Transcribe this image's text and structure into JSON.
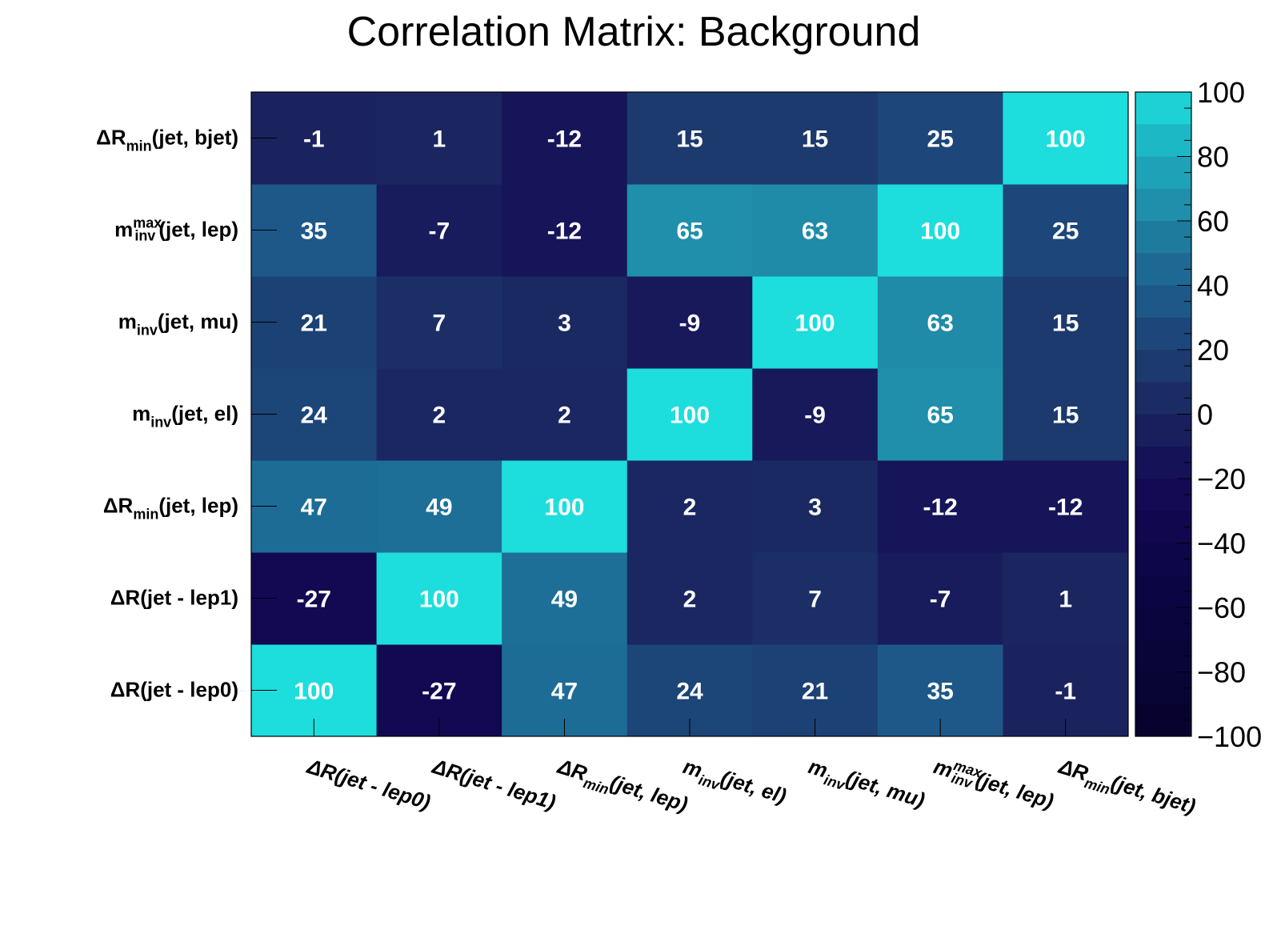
{
  "chart_data": {
    "type": "heatmap",
    "title": "Correlation Matrix: Background",
    "variables": [
      {
        "main": "ΔR(jet - lep0)"
      },
      {
        "main": "ΔR(jet - lep1)"
      },
      {
        "main": "ΔR",
        "sub": "min",
        "post": "(jet, lep)"
      },
      {
        "main": "m",
        "sub": "inv",
        "post": "(jet, el)"
      },
      {
        "main": "m",
        "sub": "inv",
        "post": "(jet, mu)"
      },
      {
        "main": "m",
        "sub": "inv",
        "sup": "max",
        "post": "(jet, lep)"
      },
      {
        "main": "ΔR",
        "sub": "min",
        "post": "(jet, bjet)"
      }
    ],
    "matrix": [
      [
        100,
        -27,
        47,
        24,
        21,
        35,
        -1
      ],
      [
        -27,
        100,
        49,
        2,
        7,
        -7,
        1
      ],
      [
        47,
        49,
        100,
        2,
        3,
        -12,
        -12
      ],
      [
        24,
        2,
        2,
        100,
        -9,
        65,
        15
      ],
      [
        21,
        7,
        3,
        -9,
        100,
        63,
        15
      ],
      [
        35,
        -7,
        -12,
        65,
        63,
        100,
        25
      ],
      [
        -1,
        1,
        -12,
        15,
        15,
        25,
        100
      ]
    ],
    "zlim": [
      -100,
      100
    ],
    "colorbar_ticks": [
      "100",
      "80",
      "60",
      "40",
      "20",
      "0",
      "−20",
      "−40",
      "−60",
      "−80",
      "−100"
    ],
    "colors": {
      "low": "#06022b",
      "high": "#1ddedc"
    }
  }
}
